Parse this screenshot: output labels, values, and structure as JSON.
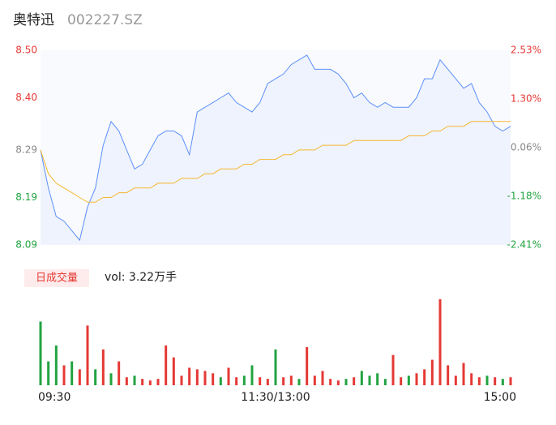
{
  "chart_data": [
    {
      "type": "line",
      "title": "奥特迅",
      "subtitle": "002227.SZ",
      "x": [
        0,
        4,
        8,
        12,
        16,
        20,
        24,
        28,
        32,
        36,
        40,
        44,
        48,
        52,
        56,
        60,
        64,
        68,
        72,
        76,
        80,
        84,
        88,
        92,
        96,
        100,
        104,
        108,
        112,
        116,
        120,
        124,
        128,
        132,
        136,
        140,
        144,
        148,
        152,
        156,
        160,
        164,
        168,
        172,
        176,
        180,
        184,
        188,
        192,
        196,
        200,
        204,
        208,
        212,
        216,
        220,
        224,
        228,
        232,
        236,
        240
      ],
      "xlim": [
        0,
        240
      ],
      "xticks": [
        {
          "value": 0,
          "label": "09:30"
        },
        {
          "value": 120,
          "label": "11:30/13:00"
        },
        {
          "value": 240,
          "label": "15:00"
        }
      ],
      "series": [
        {
          "name": "price",
          "color": "#5b8ff9",
          "values": [
            8.29,
            8.21,
            8.15,
            8.14,
            8.12,
            8.1,
            8.17,
            8.21,
            8.3,
            8.35,
            8.33,
            8.29,
            8.25,
            8.26,
            8.29,
            8.32,
            8.33,
            8.33,
            8.32,
            8.28,
            8.37,
            8.38,
            8.39,
            8.4,
            8.41,
            8.39,
            8.38,
            8.37,
            8.39,
            8.43,
            8.44,
            8.45,
            8.47,
            8.48,
            8.49,
            8.46,
            8.46,
            8.46,
            8.45,
            8.43,
            8.4,
            8.41,
            8.39,
            8.38,
            8.39,
            8.38,
            8.38,
            8.38,
            8.4,
            8.44,
            8.44,
            8.48,
            8.46,
            8.44,
            8.42,
            8.43,
            8.39,
            8.37,
            8.34,
            8.33,
            8.34
          ]
        },
        {
          "name": "average",
          "color": "#f5b731",
          "values": [
            8.29,
            8.24,
            8.22,
            8.21,
            8.2,
            8.19,
            8.18,
            8.18,
            8.19,
            8.19,
            8.2,
            8.2,
            8.21,
            8.21,
            8.21,
            8.22,
            8.22,
            8.22,
            8.23,
            8.23,
            8.23,
            8.24,
            8.24,
            8.25,
            8.25,
            8.25,
            8.26,
            8.26,
            8.27,
            8.27,
            8.27,
            8.28,
            8.28,
            8.29,
            8.29,
            8.29,
            8.3,
            8.3,
            8.3,
            8.3,
            8.31,
            8.31,
            8.31,
            8.31,
            8.31,
            8.31,
            8.31,
            8.32,
            8.32,
            8.32,
            8.33,
            8.33,
            8.34,
            8.34,
            8.34,
            8.35,
            8.35,
            8.35,
            8.35,
            8.35,
            8.35
          ]
        }
      ],
      "ylim": [
        8.09,
        8.5
      ],
      "yticks": [
        {
          "value": 8.5,
          "label": "8.50"
        },
        {
          "value": 8.4,
          "label": "8.40"
        },
        8.29,
        8.19,
        8.09
      ],
      "y2lim": [
        -2.41,
        2.53
      ],
      "y2ticks": [
        {
          "value": 2.53,
          "label": "2.53%"
        },
        {
          "value": 1.3,
          "label": "1.30%"
        },
        {
          "value": 0.06,
          "label": "0.06%"
        },
        {
          "value": -1.18,
          "label": "-1.18%"
        },
        {
          "value": -2.41,
          "label": "-2.41%"
        }
      ],
      "tick_colors": [
        "#e53935",
        "#e53935",
        "#888888",
        "#22a340",
        "#22a340"
      ]
    },
    {
      "type": "bar",
      "title": "日成交量",
      "subtitle": "vol: 3.22万手",
      "x": [
        0,
        4,
        8,
        12,
        16,
        20,
        24,
        28,
        32,
        36,
        40,
        44,
        48,
        52,
        56,
        60,
        64,
        68,
        72,
        76,
        80,
        84,
        88,
        92,
        96,
        100,
        104,
        108,
        112,
        116,
        120,
        124,
        128,
        132,
        136,
        140,
        144,
        148,
        152,
        156,
        160,
        164,
        168,
        172,
        176,
        180,
        184,
        188,
        192,
        196,
        200,
        204,
        208,
        212,
        216,
        220,
        224,
        228,
        232,
        236,
        240
      ],
      "xlim": [
        0,
        240
      ],
      "values": [
        80,
        30,
        50,
        25,
        30,
        20,
        75,
        20,
        45,
        15,
        30,
        10,
        12,
        8,
        6,
        8,
        50,
        35,
        12,
        22,
        20,
        18,
        15,
        10,
        22,
        10,
        12,
        25,
        10,
        8,
        45,
        10,
        12,
        8,
        48,
        12,
        18,
        8,
        6,
        8,
        10,
        18,
        12,
        15,
        8,
        38,
        10,
        12,
        15,
        20,
        32,
        108,
        25,
        12,
        28,
        15,
        10,
        12,
        10,
        8,
        10
      ],
      "colors": [
        "#22a340",
        "#22a340",
        "#22a340",
        "#e53935",
        "#22a340",
        "#e53935",
        "#e53935",
        "#22a340",
        "#e53935",
        "#22a340",
        "#e53935",
        "#e53935",
        "#22a340",
        "#e53935",
        "#e53935",
        "#e53935",
        "#e53935",
        "#e53935",
        "#e53935",
        "#e53935",
        "#e53935",
        "#e53935",
        "#e53935",
        "#22a340",
        "#e53935",
        "#e53935",
        "#22a340",
        "#22a340",
        "#e53935",
        "#e53935",
        "#22a340",
        "#e53935",
        "#e53935",
        "#22a340",
        "#e53935",
        "#e53935",
        "#e53935",
        "#e53935",
        "#e53935",
        "#22a340",
        "#e53935",
        "#22a340",
        "#22a340",
        "#22a340",
        "#22a340",
        "#e53935",
        "#e53935",
        "#22a340",
        "#e53935",
        "#e53935",
        "#e53935",
        "#e53935",
        "#e53935",
        "#e53935",
        "#e53935",
        "#e53935",
        "#e53935",
        "#22a340",
        "#e53935",
        "#22a340",
        "#e53935"
      ],
      "ylim": [
        0,
        110
      ]
    }
  ]
}
